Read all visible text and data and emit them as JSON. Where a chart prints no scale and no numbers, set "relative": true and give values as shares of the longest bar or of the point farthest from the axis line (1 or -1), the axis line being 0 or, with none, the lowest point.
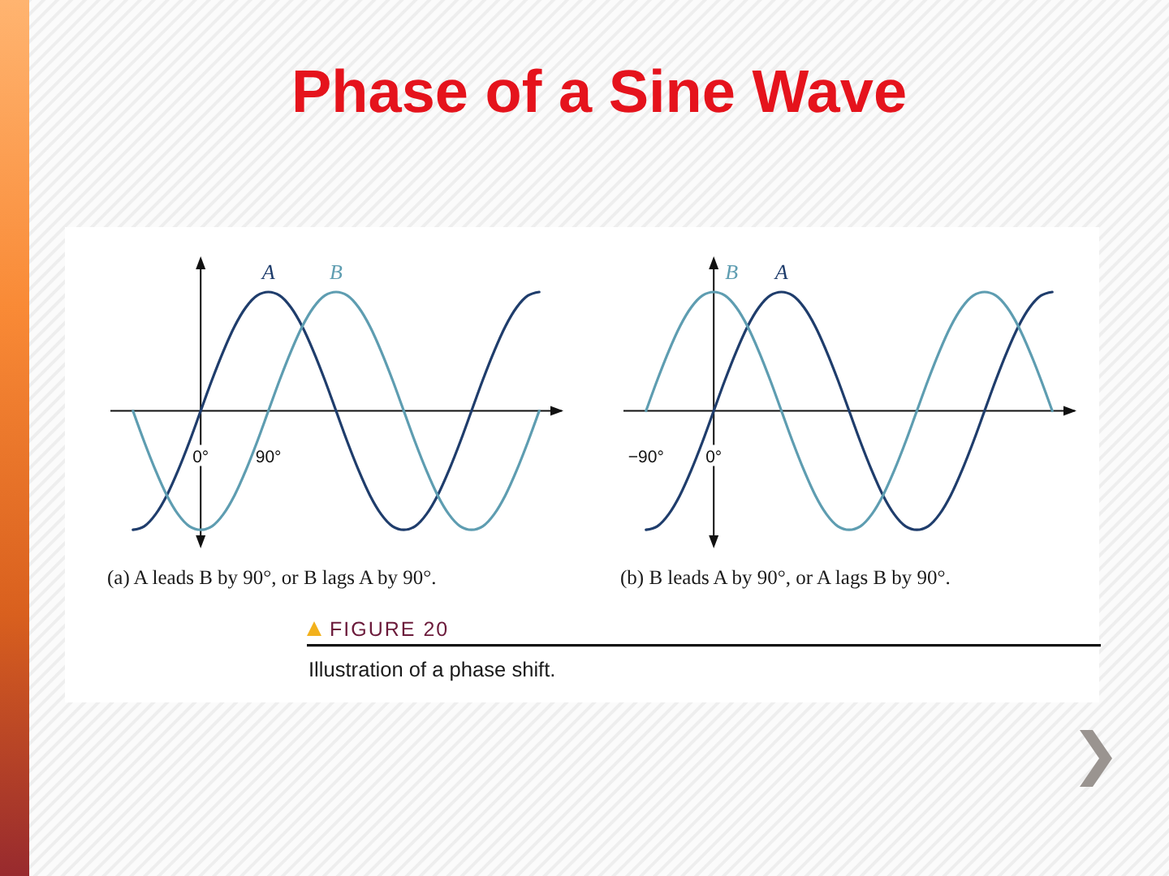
{
  "chart_data": [
    {
      "type": "other",
      "title": "Phase of a Sine Wave",
      "annotations": [
        "FIGURE 20",
        "Illustration of a phase shift."
      ]
    },
    {
      "type": "line",
      "x": [
        -90,
        -75,
        -60,
        -45,
        -30,
        -15,
        0,
        15,
        30,
        45,
        60,
        75,
        90,
        105,
        120,
        135,
        150,
        165,
        180,
        195,
        210,
        225,
        240,
        255,
        270,
        285,
        300,
        315,
        330,
        345,
        360,
        375,
        390,
        405,
        420,
        435,
        450
      ],
      "series": [
        {
          "name": "A",
          "color": "#1f3d6c",
          "values": [
            -1,
            -0.97,
            -0.87,
            -0.71,
            -0.5,
            -0.26,
            0,
            0.26,
            0.5,
            0.71,
            0.87,
            0.97,
            1,
            0.97,
            0.87,
            0.71,
            0.5,
            0.26,
            0,
            -0.26,
            -0.5,
            -0.71,
            -0.87,
            -0.97,
            -1,
            -0.97,
            -0.87,
            -0.71,
            -0.5,
            -0.26,
            0,
            0.26,
            0.5,
            0.71,
            0.87,
            0.97,
            1
          ]
        },
        {
          "name": "B",
          "color": "#5e9db1",
          "values": [
            0,
            -0.26,
            -0.5,
            -0.71,
            -0.87,
            -0.97,
            -1,
            -0.97,
            -0.87,
            -0.71,
            -0.5,
            -0.26,
            0,
            0.26,
            0.5,
            0.71,
            0.87,
            0.97,
            1,
            0.97,
            0.87,
            0.71,
            0.5,
            0.26,
            0,
            -0.26,
            -0.5,
            -0.71,
            -0.87,
            -0.97,
            -1,
            -0.97,
            -0.87,
            -0.71,
            -0.5,
            -0.26,
            0
          ]
        }
      ],
      "relative": true,
      "xlim": [
        -120,
        480
      ],
      "xticks": [
        {
          "value": 0,
          "label": "0°"
        },
        {
          "value": 90,
          "label": "90°"
        }
      ],
      "annotations": [
        "(a) A leads B by 90°, or B lags A by 90°."
      ]
    },
    {
      "type": "line",
      "x": [
        -90,
        -75,
        -60,
        -45,
        -30,
        -15,
        0,
        15,
        30,
        45,
        60,
        75,
        90,
        105,
        120,
        135,
        150,
        165,
        180,
        195,
        210,
        225,
        240,
        255,
        270,
        285,
        300,
        315,
        330,
        345,
        360,
        375,
        390,
        405,
        420,
        435,
        450
      ],
      "series": [
        {
          "name": "A",
          "color": "#1f3d6c",
          "values": [
            -1,
            -0.97,
            -0.87,
            -0.71,
            -0.5,
            -0.26,
            0,
            0.26,
            0.5,
            0.71,
            0.87,
            0.97,
            1,
            0.97,
            0.87,
            0.71,
            0.5,
            0.26,
            0,
            -0.26,
            -0.5,
            -0.71,
            -0.87,
            -0.97,
            -1,
            -0.97,
            -0.87,
            -0.71,
            -0.5,
            -0.26,
            0,
            0.26,
            0.5,
            0.71,
            0.87,
            0.97,
            1
          ]
        },
        {
          "name": "B",
          "color": "#5e9db1",
          "values": [
            0,
            0.26,
            0.5,
            0.71,
            0.87,
            0.97,
            1,
            0.97,
            0.87,
            0.71,
            0.5,
            0.26,
            0,
            -0.26,
            -0.5,
            -0.71,
            -0.87,
            -0.97,
            -1,
            -0.97,
            -0.87,
            -0.71,
            -0.5,
            -0.26,
            0,
            0.26,
            0.5,
            0.71,
            0.87,
            0.97,
            1,
            0.97,
            0.87,
            0.71,
            0.5,
            0.26,
            0
          ]
        }
      ],
      "relative": true,
      "xlim": [
        -120,
        480
      ],
      "xticks": [
        {
          "value": -90,
          "label": "−90°"
        },
        {
          "value": 0,
          "label": "0°"
        }
      ],
      "annotations": [
        "(b) B leads A by 90°, or A lags B by 90°."
      ]
    }
  ]
}
